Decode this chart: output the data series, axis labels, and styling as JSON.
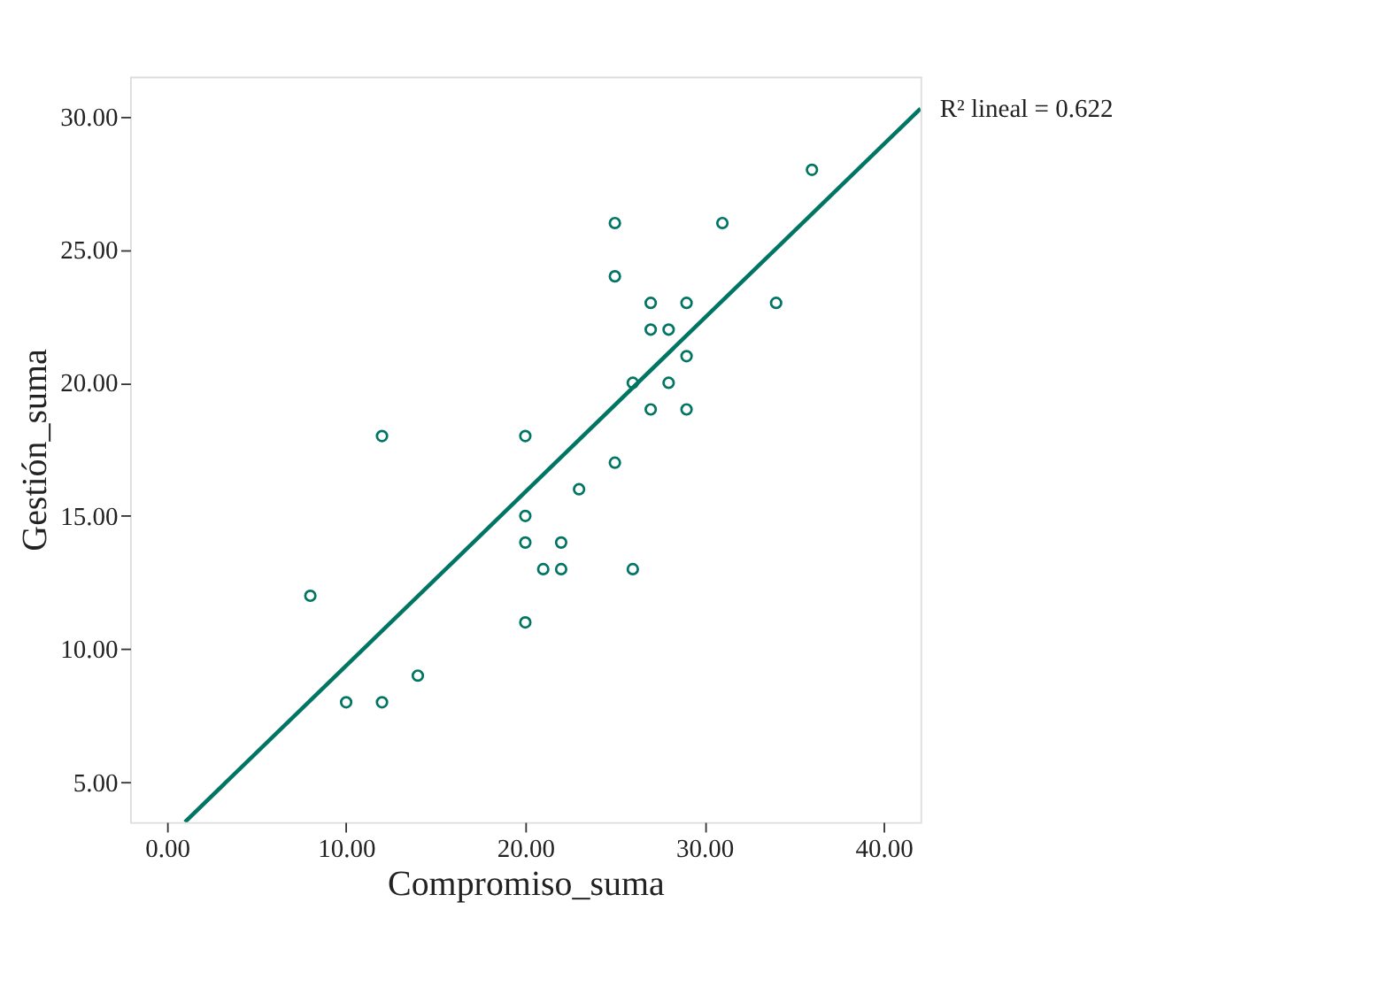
{
  "chart_data": {
    "type": "scatter",
    "xlabel": "Compromiso_suma",
    "ylabel": "Gestión_suma",
    "series": [
      {
        "type": "scatter",
        "color": "#007563",
        "marker": "circle",
        "x": [
          8,
          10,
          12,
          12,
          14,
          20,
          20,
          20,
          20,
          21,
          22,
          22,
          23,
          25,
          25,
          25,
          26,
          26,
          27,
          27,
          27,
          28,
          28,
          29,
          29,
          29,
          31,
          34,
          36
        ],
        "values": [
          12,
          8,
          8,
          18,
          9,
          18,
          15,
          14,
          11,
          13,
          14,
          13,
          16,
          26,
          24,
          17,
          20,
          13,
          23,
          22,
          19,
          22,
          20,
          23,
          21,
          19,
          26,
          23,
          28
        ]
      },
      {
        "type": "line",
        "color": "#007563",
        "line_style": "solid",
        "x": [
          1.0,
          42.06
        ],
        "values": [
          3.5,
          30.3
        ]
      }
    ],
    "annotations": [
      "R² lineal = 0.622"
    ],
    "xlim": [
      -2.06,
      42.06
    ],
    "xticks": [
      {
        "value": 0,
        "label": "0.00"
      },
      {
        "value": 10,
        "label": "10.00"
      },
      {
        "value": 20,
        "label": "20.00"
      },
      {
        "value": 30,
        "label": "30.00"
      },
      {
        "value": 40,
        "label": "40.00"
      }
    ],
    "ylim": [
      3.5,
      31.5
    ],
    "yticks": [
      {
        "value": 5,
        "label": "5.00"
      },
      {
        "value": 10,
        "label": "10.00"
      },
      {
        "value": 15,
        "label": "15.00"
      },
      {
        "value": 20,
        "label": "20.00"
      },
      {
        "value": 25,
        "label": "25.00"
      },
      {
        "value": 30,
        "label": "30.00"
      }
    ],
    "grid": false,
    "legend": false
  }
}
